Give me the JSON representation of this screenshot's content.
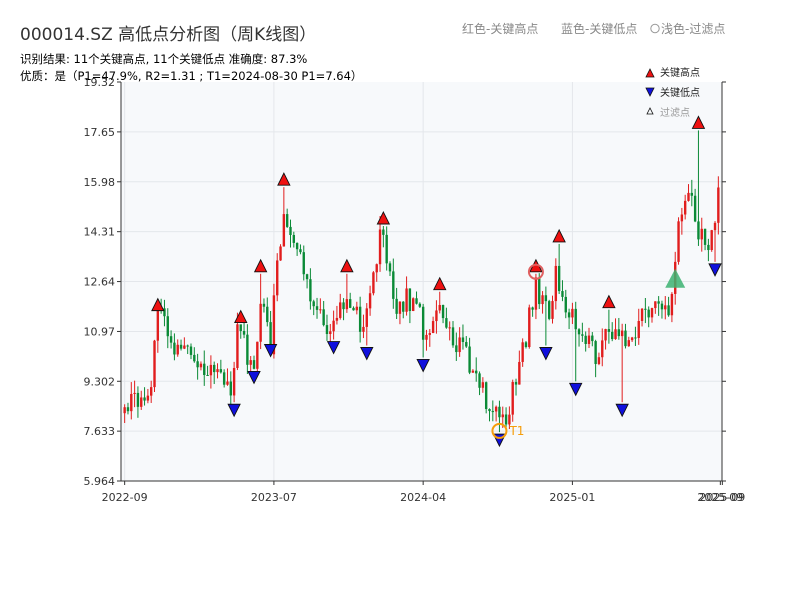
{
  "header": {
    "title": "000014.SZ 高低点分析图（周K线图）",
    "result_line": "识别结果: 11个关键高点, 11个关键低点   准确度: 87.3%",
    "quality_line": "优质：是（P1=47.9%, R2=1.31 ; T1=2024-08-30 P1=7.64）",
    "top_legend": [
      "红色-关键高点",
      "蓝色-关键低点",
      "浅色-过滤点"
    ]
  },
  "colors": {
    "up": "#e11d1d",
    "down": "#0a8a36",
    "high_marker": "#ee1111",
    "low_marker": "#1010dd",
    "filtered": "#3cb371",
    "annotation": "#f59e0b",
    "result_text": "#e04040",
    "quality_text": "#3cb371",
    "plot_bg": "#f7f9fb",
    "grid": "#e4e7eb"
  },
  "chart_data": {
    "type": "candlestick",
    "title": "000014.SZ 高低点分析图（周K线图）",
    "y_ticks": [
      "5.964",
      "7.633",
      "9.302",
      "10.97",
      "12.64",
      "14.31",
      "15.98",
      "17.65",
      "19.32"
    ],
    "ylim": [
      5.964,
      19.32
    ],
    "x_ticks": [
      "2022-09",
      "2023-07",
      "2024-04",
      "2025-01"
    ],
    "x_end_labels": [
      "2025-09",
      "2025-09"
    ],
    "x_tick_positions": [
      0,
      45,
      90,
      135
    ],
    "n_bars": 180,
    "grid": true,
    "legend": {
      "placement": "top-right",
      "items": [
        {
          "label": "关键高点",
          "marker": "high"
        },
        {
          "label": "关键低点",
          "marker": "low"
        },
        {
          "label": "过滤点",
          "marker": "filtered"
        }
      ]
    },
    "series_close_anchors": [
      [
        0,
        8.4
      ],
      [
        8,
        9.1
      ],
      [
        10,
        11.6
      ],
      [
        14,
        10.6
      ],
      [
        22,
        10.2
      ],
      [
        26,
        9.5
      ],
      [
        32,
        9.1
      ],
      [
        34,
        10.9
      ],
      [
        39,
        9.9
      ],
      [
        41,
        12.1
      ],
      [
        44,
        10.6
      ],
      [
        48,
        15.2
      ],
      [
        52,
        13.8
      ],
      [
        56,
        12.2
      ],
      [
        62,
        11.1
      ],
      [
        67,
        12.2
      ],
      [
        72,
        11.1
      ],
      [
        77,
        14.2
      ],
      [
        82,
        12.0
      ],
      [
        88,
        12.1
      ],
      [
        91,
        10.6
      ],
      [
        95,
        12.0
      ],
      [
        100,
        10.6
      ],
      [
        106,
        9.5
      ],
      [
        112,
        8.0
      ],
      [
        115,
        8.1
      ],
      [
        119,
        9.7
      ],
      [
        124,
        12.5
      ],
      [
        128,
        11.3
      ],
      [
        130,
        13.0
      ],
      [
        134,
        11.5
      ],
      [
        138,
        10.7
      ],
      [
        143,
        10.2
      ],
      [
        146,
        11.2
      ],
      [
        151,
        10.5
      ],
      [
        156,
        11.6
      ],
      [
        161,
        11.9
      ],
      [
        164,
        11.7
      ],
      [
        167,
        14.5
      ],
      [
        170,
        15.6
      ],
      [
        173,
        14.5
      ],
      [
        176,
        14.0
      ],
      [
        179,
        15.4
      ]
    ],
    "key_highs": [
      {
        "i": 10,
        "price": 11.6
      },
      {
        "i": 35,
        "price": 11.2
      },
      {
        "i": 41,
        "price": 12.9
      },
      {
        "i": 48,
        "price": 15.8
      },
      {
        "i": 67,
        "price": 12.9
      },
      {
        "i": 78,
        "price": 14.5
      },
      {
        "i": 95,
        "price": 12.3
      },
      {
        "i": 124,
        "price": 12.9
      },
      {
        "i": 131,
        "price": 13.9
      },
      {
        "i": 146,
        "price": 11.7
      },
      {
        "i": 173,
        "price": 17.7
      }
    ],
    "key_lows": [
      {
        "i": 33,
        "price": 8.6
      },
      {
        "i": 39,
        "price": 9.7
      },
      {
        "i": 44,
        "price": 10.6
      },
      {
        "i": 63,
        "price": 10.7
      },
      {
        "i": 73,
        "price": 10.5
      },
      {
        "i": 90,
        "price": 10.1
      },
      {
        "i": 113,
        "price": 7.6
      },
      {
        "i": 127,
        "price": 10.5
      },
      {
        "i": 136,
        "price": 9.3
      },
      {
        "i": 150,
        "price": 8.6
      },
      {
        "i": 178,
        "price": 13.3
      }
    ],
    "filtered_points": [
      {
        "i": 166,
        "price": 12.7
      }
    ],
    "annotations": [
      {
        "label": "T1",
        "i": 113,
        "price": 7.64,
        "style": "circle"
      },
      {
        "label": "",
        "i": 124,
        "price": 12.9,
        "style": "circle"
      }
    ]
  }
}
